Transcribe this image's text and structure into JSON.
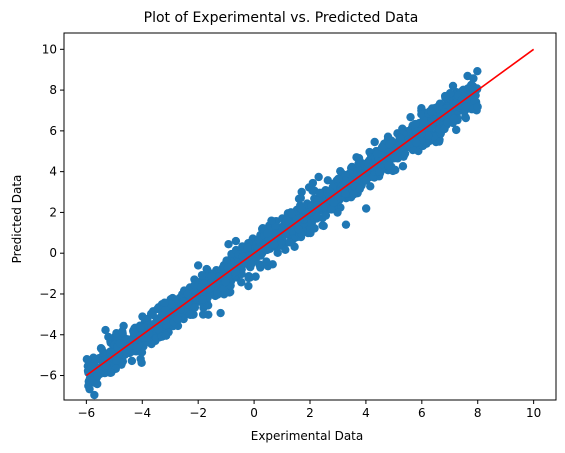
{
  "chart_data": {
    "type": "scatter",
    "title": "Plot of Experimental vs. Predicted Data",
    "xlabel": "Experimental Data",
    "ylabel": "Predicted Data",
    "xlim": [
      -6.8,
      10.8
    ],
    "ylim": [
      -7.2,
      10.8
    ],
    "xticks": [
      -6,
      -4,
      -2,
      0,
      2,
      4,
      6,
      8,
      10
    ],
    "yticks": [
      -6,
      -4,
      -2,
      0,
      2,
      4,
      6,
      8,
      10
    ],
    "xtick_labels": [
      "−6",
      "−4",
      "−2",
      "0",
      "2",
      "4",
      "6",
      "8",
      "10"
    ],
    "ytick_labels": [
      "−6",
      "−4",
      "−2",
      "0",
      "2",
      "4",
      "6",
      "8",
      "10"
    ],
    "grid": false,
    "series": [
      {
        "kind": "scatter",
        "color": "#1f77b4",
        "x_range": [
          -6.0,
          8.0
        ],
        "slope": 1.0,
        "intercept": 0.0,
        "spread": 0.45,
        "count": 1400
      },
      {
        "kind": "line",
        "color": "#ff0000",
        "x": [
          -6,
          10
        ],
        "y": [
          -6,
          10
        ]
      }
    ]
  }
}
